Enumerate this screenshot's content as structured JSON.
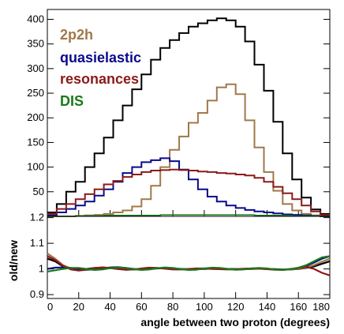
{
  "chart_data": [
    {
      "type": "line",
      "step": true,
      "xlim": [
        0,
        180
      ],
      "ylim": [
        0,
        420
      ],
      "xticks": [
        0,
        20,
        40,
        60,
        80,
        100,
        120,
        140,
        160,
        180
      ],
      "yticks": [
        50,
        100,
        150,
        200,
        250,
        300,
        350,
        400
      ],
      "ytick_labels": [
        "50",
        "100",
        "150",
        "200",
        "250",
        "300",
        "350",
        "400"
      ],
      "bin_width": 6,
      "x": [
        3,
        9,
        15,
        21,
        27,
        33,
        39,
        45,
        51,
        57,
        63,
        69,
        75,
        81,
        87,
        93,
        99,
        105,
        111,
        117,
        123,
        129,
        135,
        141,
        147,
        153,
        159,
        165,
        171,
        177
      ],
      "legend": {
        "placement": "top-left",
        "entries": [
          "2p2h",
          "quasielastic",
          "resonances",
          "DIS"
        ]
      },
      "series": [
        {
          "name": "total",
          "color": "#000000",
          "values": [
            8,
            25,
            50,
            70,
            100,
            128,
            160,
            195,
            225,
            258,
            288,
            318,
            342,
            358,
            372,
            385,
            392,
            398,
            402,
            398,
            385,
            355,
            308,
            255,
            192,
            128,
            75,
            38,
            14,
            5
          ]
        },
        {
          "name": "2p2h",
          "color": "#a0784a",
          "values": [
            0,
            0,
            0,
            1,
            2,
            3,
            5,
            8,
            12,
            20,
            35,
            62,
            100,
            135,
            162,
            190,
            210,
            235,
            262,
            268,
            248,
            195,
            140,
            90,
            52,
            25,
            12,
            5,
            2,
            0
          ]
        },
        {
          "name": "quasielastic",
          "color": "#0a0a8c",
          "values": [
            2,
            8,
            15,
            22,
            30,
            42,
            55,
            70,
            88,
            100,
            110,
            114,
            118,
            112,
            95,
            75,
            55,
            40,
            30,
            22,
            17,
            13,
            10,
            8,
            6,
            4,
            3,
            2,
            1,
            0
          ]
        },
        {
          "name": "resonances",
          "color": "#8b1a1a",
          "values": [
            5,
            15,
            25,
            35,
            45,
            55,
            65,
            72,
            80,
            85,
            90,
            93,
            94,
            95,
            94,
            93,
            91,
            90,
            88,
            87,
            85,
            83,
            78,
            70,
            60,
            47,
            35,
            22,
            10,
            3
          ]
        },
        {
          "name": "DIS",
          "color": "#1a7a1a",
          "values": [
            0,
            0,
            0,
            1,
            1,
            1,
            2,
            2,
            2,
            2,
            2,
            2,
            3,
            3,
            3,
            3,
            3,
            3,
            3,
            3,
            3,
            3,
            2,
            2,
            2,
            2,
            1,
            1,
            1,
            0
          ]
        }
      ]
    },
    {
      "type": "line",
      "xlim": [
        0,
        180
      ],
      "ylim": [
        0.885,
        1.205
      ],
      "xticks": [
        0,
        20,
        40,
        60,
        80,
        100,
        120,
        140,
        160,
        180
      ],
      "xtick_labels": [
        "0",
        "20",
        "40",
        "60",
        "80",
        "100",
        "120",
        "140",
        "160",
        "180"
      ],
      "yticks": [
        0.9,
        1.0,
        1.1,
        1.2
      ],
      "ytick_labels": [
        "0.9",
        "1",
        "1.1",
        "1.2"
      ],
      "xlabel": "angle between two proton (degrees)",
      "ylabel": "old/new",
      "x": [
        0,
        5,
        10,
        15,
        20,
        25,
        30,
        35,
        40,
        45,
        50,
        55,
        60,
        65,
        70,
        75,
        80,
        85,
        90,
        95,
        100,
        105,
        110,
        115,
        120,
        125,
        130,
        135,
        140,
        145,
        150,
        155,
        160,
        165,
        170,
        175,
        180
      ],
      "series": [
        {
          "name": "black",
          "color": "#000000",
          "values": [
            1.04,
            1.03,
            1.01,
            1.0,
            0.998,
            1.0,
            1.004,
            1.006,
            1.004,
            1.0,
            0.998,
            0.998,
            1.0,
            1.002,
            1.003,
            1.002,
            1.0,
            0.999,
            0.999,
            1.0,
            1.0,
            1.001,
            1.001,
            1.0,
            0.999,
            0.999,
            1.0,
            1.001,
            1.0,
            0.999,
            0.998,
            0.998,
            1.0,
            1.004,
            1.01,
            1.02,
            1.03
          ]
        },
        {
          "name": "brown",
          "color": "#a0784a",
          "values": [
            1.06,
            1.04,
            1.015,
            1.002,
            0.996,
            0.998,
            1.003,
            1.005,
            1.003,
            1.0,
            0.997,
            0.998,
            1.001,
            1.004,
            1.004,
            1.002,
            0.999,
            0.998,
            0.999,
            1.001,
            1.002,
            1.001,
            1.0,
            0.999,
            0.998,
            0.999,
            1.001,
            1.002,
            1.0,
            0.998,
            0.997,
            0.998,
            1.001,
            1.006,
            1.015,
            1.028,
            1.04
          ]
        },
        {
          "name": "blue",
          "color": "#0a0a8c",
          "values": [
            1.0,
            1.005,
            1.006,
            1.004,
            1.0,
            0.997,
            0.998,
            1.002,
            1.006,
            1.007,
            1.004,
            1.0,
            0.998,
            0.999,
            1.002,
            1.004,
            1.003,
            1.0,
            0.998,
            0.999,
            1.001,
            1.003,
            1.002,
            1.0,
            0.999,
            1.0,
            1.002,
            1.003,
            1.001,
            0.998,
            0.997,
            0.999,
            1.004,
            1.012,
            1.025,
            1.04,
            1.05
          ]
        },
        {
          "name": "red",
          "color": "#8b1a1a",
          "values": [
            1.05,
            1.035,
            1.012,
            0.998,
            0.994,
            0.997,
            1.003,
            1.006,
            1.004,
            1.0,
            0.997,
            0.998,
            1.002,
            1.005,
            1.004,
            1.001,
            0.998,
            0.998,
            1.0,
            1.002,
            1.002,
            1.0,
            0.999,
            0.998,
            0.999,
            1.001,
            1.002,
            1.001,
            0.999,
            0.997,
            0.997,
            1.0,
            1.004,
            1.008,
            1.0,
            0.985,
            0.975
          ]
        },
        {
          "name": "green",
          "color": "#1a7a1a",
          "values": [
            0.99,
            0.995,
            1.0,
            1.004,
            1.004,
            1.0,
            0.996,
            0.998,
            1.003,
            1.006,
            1.004,
            0.999,
            0.996,
            0.998,
            1.003,
            1.006,
            1.004,
            0.999,
            0.996,
            0.997,
            1.002,
            1.005,
            1.004,
            1.0,
            0.997,
            0.998,
            1.002,
            1.004,
            1.002,
            0.998,
            0.996,
            0.999,
            1.005,
            1.015,
            1.03,
            1.045,
            1.05
          ]
        }
      ]
    }
  ]
}
